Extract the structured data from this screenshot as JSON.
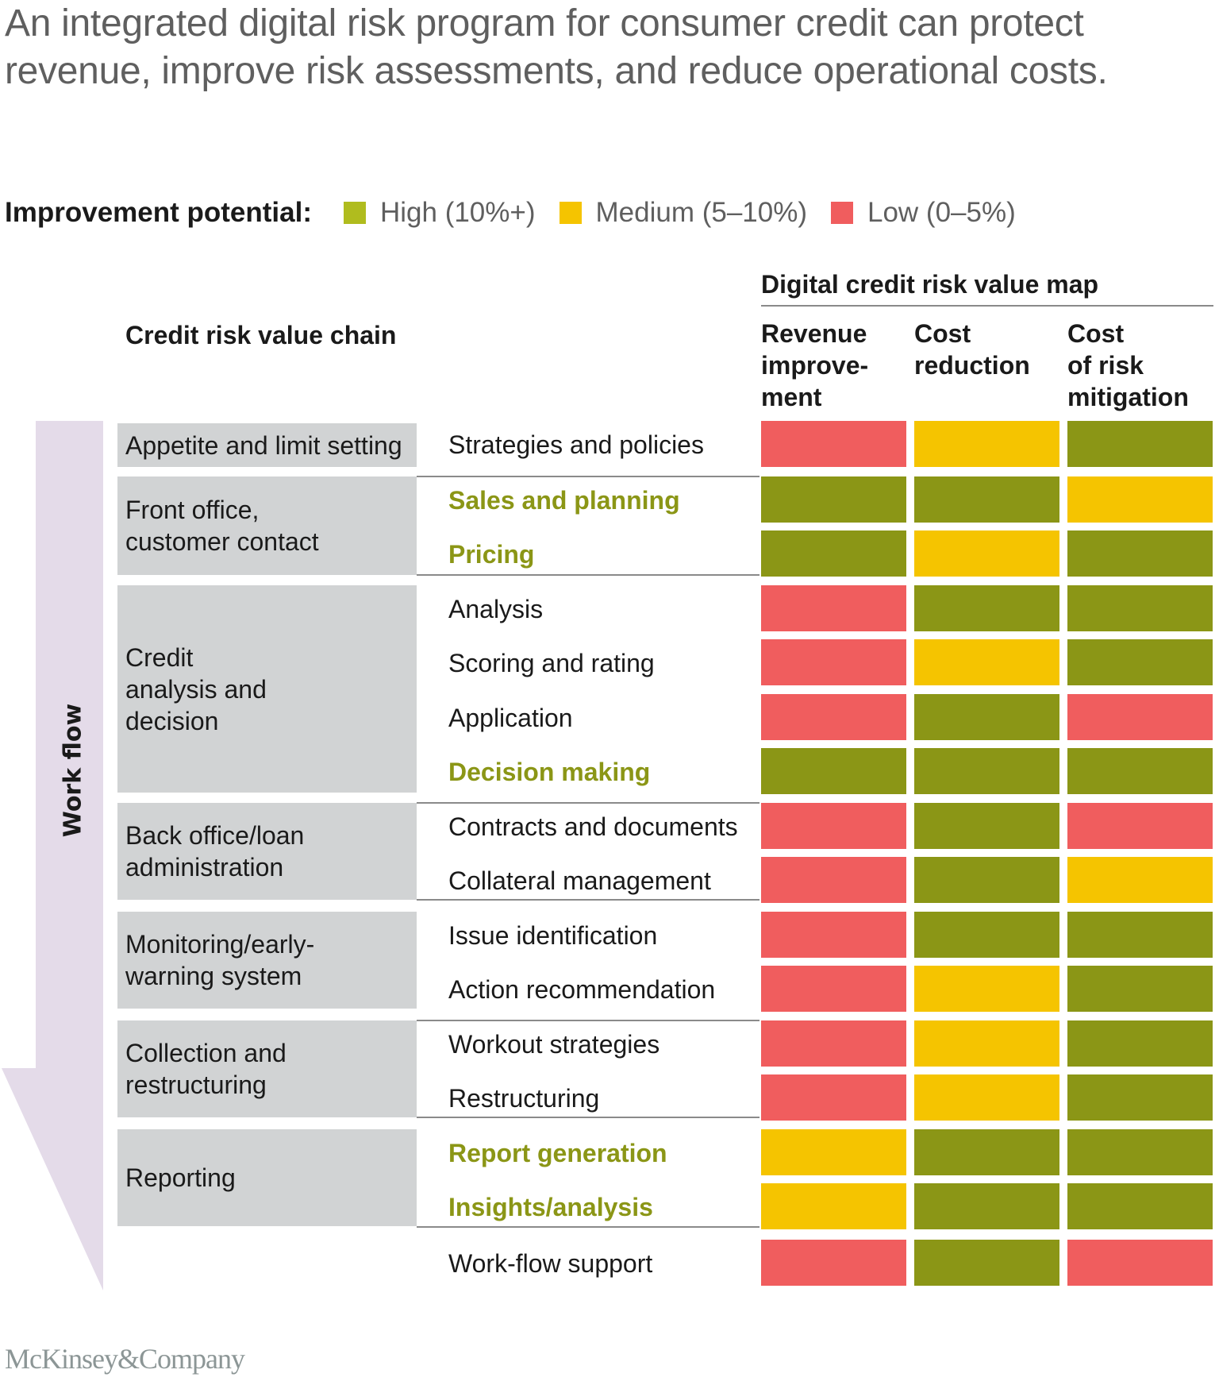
{
  "title": "An integrated digital risk program for consumer credit can protect revenue, improve risk assessments, and reduce operational costs.",
  "legend": {
    "label": "Improvement potential:",
    "items": [
      {
        "key": "high",
        "label": "High (10%+)",
        "color": "#8b9616"
      },
      {
        "key": "medium",
        "label": "Medium (5–10%)",
        "color": "#f5c400"
      },
      {
        "key": "low",
        "label": "Low (0–5%)",
        "color": "#f05d5e"
      }
    ]
  },
  "colors": {
    "high": "#8b9616",
    "medium": "#f5c400",
    "low": "#f05d5e",
    "legend_high": "#b0bc1e",
    "stage_bg": "#d1d3d4",
    "arrow": "#e4dbe9"
  },
  "headers": {
    "value_chain": "Credit risk value chain",
    "value_map": "Digital credit risk value map",
    "columns": [
      "Revenue improve-\nment",
      "Cost\nreduction",
      "Cost\nof risk\nmitigation"
    ],
    "column_lines": [
      [
        "Revenue",
        "improve-",
        "ment"
      ],
      [
        "Cost",
        "reduction"
      ],
      [
        "Cost",
        "of risk",
        "mitigation"
      ]
    ]
  },
  "workflow_label": "Work flow",
  "stages": [
    {
      "label": "Appetite and limit setting",
      "lines": [
        "Appetite and limit setting"
      ]
    },
    {
      "label": "Front office, customer contact",
      "lines": [
        "Front office,",
        "customer contact"
      ]
    },
    {
      "label": "Credit analysis and decision",
      "lines": [
        "Credit",
        "analysis and",
        "decision"
      ]
    },
    {
      "label": "Back office/loan administration",
      "lines": [
        "Back office/loan",
        "administration"
      ]
    },
    {
      "label": "Monitoring/early-warning system",
      "lines": [
        "Monitoring/early-",
        "warning system"
      ]
    },
    {
      "label": "Collection and restructuring",
      "lines": [
        "Collection and",
        "restructuring"
      ]
    },
    {
      "label": "Reporting",
      "lines": [
        "Reporting"
      ]
    }
  ],
  "activities": [
    {
      "label": "Strategies and policies",
      "highlight": false,
      "values": [
        "low",
        "medium",
        "high"
      ]
    },
    {
      "label": "Sales and planning",
      "highlight": true,
      "values": [
        "high",
        "high",
        "medium"
      ]
    },
    {
      "label": "Pricing",
      "highlight": true,
      "values": [
        "high",
        "medium",
        "high"
      ]
    },
    {
      "label": "Analysis",
      "highlight": false,
      "values": [
        "low",
        "high",
        "high"
      ]
    },
    {
      "label": "Scoring and rating",
      "highlight": false,
      "values": [
        "low",
        "medium",
        "high"
      ]
    },
    {
      "label": "Application",
      "highlight": false,
      "values": [
        "low",
        "high",
        "low"
      ]
    },
    {
      "label": "Decision making",
      "highlight": true,
      "values": [
        "high",
        "high",
        "high"
      ]
    },
    {
      "label": "Contracts and documents",
      "highlight": false,
      "values": [
        "low",
        "high",
        "low"
      ]
    },
    {
      "label": "Collateral management",
      "highlight": false,
      "values": [
        "low",
        "high",
        "medium"
      ]
    },
    {
      "label": "Issue identification",
      "highlight": false,
      "values": [
        "low",
        "high",
        "high"
      ]
    },
    {
      "label": "Action recommendation",
      "highlight": false,
      "values": [
        "low",
        "medium",
        "high"
      ]
    },
    {
      "label": "Workout strategies",
      "highlight": false,
      "values": [
        "low",
        "medium",
        "high"
      ]
    },
    {
      "label": "Restructuring",
      "highlight": false,
      "values": [
        "low",
        "medium",
        "high"
      ]
    },
    {
      "label": "Report generation",
      "highlight": true,
      "values": [
        "medium",
        "high",
        "high"
      ]
    },
    {
      "label": "Insights/analysis",
      "highlight": true,
      "values": [
        "medium",
        "high",
        "high"
      ]
    },
    {
      "label": "Work-flow support",
      "highlight": false,
      "values": [
        "low",
        "high",
        "low"
      ]
    }
  ],
  "footer": {
    "brand": "McKinsey&Company"
  }
}
